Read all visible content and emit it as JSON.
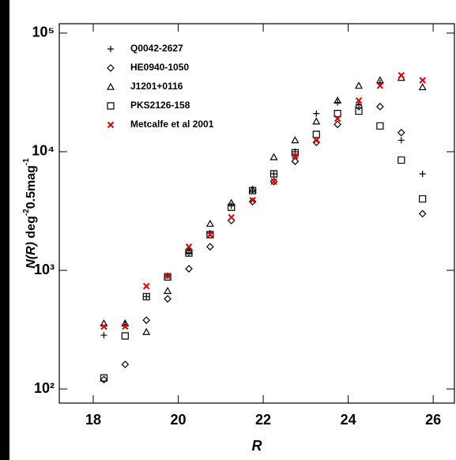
{
  "chart_data": {
    "type": "scatter",
    "x_label": "R",
    "y_label": [
      "N(R)",
      " deg",
      "-2",
      "0.5mag",
      "-1"
    ],
    "log_y": true,
    "xlim": [
      17.2,
      26.5
    ],
    "xticks": [
      18,
      20,
      22,
      24,
      26
    ],
    "ylim": [
      76,
      120000
    ],
    "yticks": [
      {
        "value": 100,
        "label": "10²"
      },
      {
        "value": 1000,
        "label": "10³"
      },
      {
        "value": 10000,
        "label": "10⁴"
      },
      {
        "value": 100000,
        "label": "10⁵"
      }
    ],
    "legend": "upper left",
    "series": [
      {
        "name": "Q0042-2627",
        "color": "#000000",
        "marker": "plus",
        "x": [
          18.25,
          18.75,
          19.25,
          19.75,
          20.25,
          20.75,
          21.25,
          21.75,
          22.25,
          22.75,
          23.25,
          23.75,
          24.25,
          24.75,
          25.25,
          25.75
        ],
        "values": [
          284,
          350,
          600,
          900,
          1400,
          2060,
          3500,
          4700,
          6500,
          10000,
          21000,
          26000,
          25000,
          38000,
          12500,
          6500
        ]
      },
      {
        "name": "HE0940-1050",
        "color": "#000000",
        "marker": "diamond",
        "x": [
          18.25,
          18.75,
          19.25,
          19.75,
          20.25,
          20.75,
          21.25,
          21.75,
          22.25,
          22.75,
          23.25,
          23.75,
          24.25,
          24.75,
          25.25,
          25.75
        ],
        "values": [
          120,
          161,
          380,
          575,
          1030,
          1580,
          2630,
          3800,
          5600,
          8300,
          12000,
          17000,
          24000,
          24000,
          14500,
          3000
        ]
      },
      {
        "name": "J1201+0116",
        "color": "#000000",
        "marker": "triangle",
        "x": [
          18.25,
          18.75,
          19.25,
          19.75,
          20.25,
          20.75,
          21.25,
          21.75,
          22.25,
          22.75,
          23.25,
          23.75,
          24.25,
          24.75,
          25.25,
          25.75
        ],
        "values": [
          357,
          357,
          302,
          670,
          1450,
          2470,
          3700,
          4800,
          9000,
          12500,
          18000,
          27000,
          36000,
          40000,
          42000,
          35000
        ]
      },
      {
        "name": "PKS2126-158",
        "color": "#000000",
        "marker": "square",
        "x": [
          18.25,
          18.75,
          19.25,
          19.75,
          20.25,
          20.75,
          21.25,
          21.75,
          22.25,
          22.75,
          23.25,
          23.75,
          24.25,
          24.75,
          25.25,
          25.75
        ],
        "values": [
          124,
          280,
          600,
          880,
          1400,
          2000,
          3400,
          4700,
          6500,
          9800,
          14000,
          21000,
          22000,
          16500,
          8500,
          4000
        ]
      },
      {
        "name": "Metcalfe et al 2001",
        "color": "#e00000",
        "marker": "x",
        "x": [
          18.25,
          18.75,
          19.25,
          19.75,
          20.25,
          20.75,
          21.25,
          21.75,
          22.25,
          22.75,
          23.25,
          23.75,
          24.25,
          24.75,
          25.25,
          25.75
        ],
        "values": [
          336,
          336,
          735,
          900,
          1580,
          2000,
          2800,
          3900,
          5600,
          9200,
          12500,
          19000,
          27000,
          36000,
          44000,
          40000
        ]
      }
    ]
  }
}
